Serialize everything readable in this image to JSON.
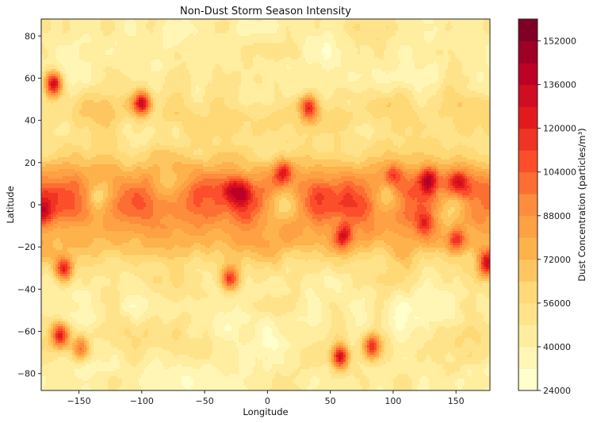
{
  "chart_data": {
    "type": "heatmap",
    "subtype": "filled-contour",
    "title": "Non-Dust Storm Season Intensity",
    "xlabel": "Longitude",
    "ylabel": "Latitude",
    "colorbar_label": "Dust Concentration (particles/m³)",
    "colormap": "YlOrRd",
    "xlim": [
      -180,
      177
    ],
    "ylim": [
      -88,
      88
    ],
    "x_ticks": [
      -150,
      -100,
      -50,
      0,
      50,
      100,
      150
    ],
    "y_ticks": [
      -80,
      -60,
      -40,
      -20,
      0,
      20,
      40,
      60,
      80
    ],
    "colorbar_range": [
      24000,
      160000
    ],
    "colorbar_ticks": [
      24000,
      40000,
      56000,
      72000,
      88000,
      104000,
      120000,
      136000,
      152000
    ],
    "levels": [
      24000,
      32000,
      40000,
      48000,
      56000,
      64000,
      72000,
      80000,
      88000,
      96000,
      104000,
      112000,
      120000,
      128000,
      136000,
      144000,
      152000,
      160000
    ],
    "base": 44000,
    "bands": [
      {
        "lat_center": 2,
        "lat_width": 17,
        "lon_start": -180,
        "lon_end": 177,
        "amplitude": 62000
      },
      {
        "lat_center": -20,
        "lat_width": 11,
        "lon_start": -180,
        "lon_end": 177,
        "amplitude": 18000
      },
      {
        "lat_center": 42,
        "lat_width": 12,
        "lon_start": -180,
        "lon_end": 177,
        "amplitude": 14000
      },
      {
        "lat_center": -66,
        "lat_width": 8,
        "lon_start": -180,
        "lon_end": 177,
        "amplitude": 6000
      }
    ],
    "hotspots": [
      {
        "lon": -170,
        "lat": 57,
        "value": 150000
      },
      {
        "lon": -100,
        "lat": 48,
        "value": 140000
      },
      {
        "lon": 33,
        "lat": 46,
        "value": 135000
      },
      {
        "lon": -178,
        "lat": -3,
        "value": 135000
      },
      {
        "lon": -20,
        "lat": 5,
        "value": 148000
      },
      {
        "lon": -28,
        "lat": 6,
        "value": 140000
      },
      {
        "lon": 13,
        "lat": 14,
        "value": 142000
      },
      {
        "lon": 100,
        "lat": 12,
        "value": 138000
      },
      {
        "lon": 128,
        "lat": 11,
        "value": 142000
      },
      {
        "lon": 152,
        "lat": 9,
        "value": 148000
      },
      {
        "lon": 60,
        "lat": -15,
        "value": 140000
      },
      {
        "lon": 150,
        "lat": -16,
        "value": 136000
      },
      {
        "lon": 175,
        "lat": -28,
        "value": 140000
      },
      {
        "lon": -162,
        "lat": -30,
        "value": 130000
      },
      {
        "lon": -30,
        "lat": -35,
        "value": 126000
      },
      {
        "lon": 125,
        "lat": -8,
        "value": 130000
      },
      {
        "lon": 58,
        "lat": -72,
        "value": 140000
      },
      {
        "lon": 83,
        "lat": -67,
        "value": 125000
      },
      {
        "lon": -165,
        "lat": -62,
        "value": 126000
      },
      {
        "lon": -148,
        "lat": -68,
        "value": 112000
      }
    ],
    "coldspots": [
      {
        "lon": -135,
        "lat": 3,
        "value": 52000
      },
      {
        "lon": 95,
        "lat": 4,
        "value": 60000
      },
      {
        "lon": 146,
        "lat": -2,
        "value": 62000
      },
      {
        "lon": -80,
        "lat": 10,
        "value": 68000
      },
      {
        "lon": 15,
        "lat": 0,
        "value": 56000
      },
      {
        "lon": 105,
        "lat": -55,
        "value": 28000
      },
      {
        "lon": -30,
        "lat": -56,
        "value": 30000
      },
      {
        "lon": 0,
        "lat": -62,
        "value": 30000
      },
      {
        "lon": -55,
        "lat": -83,
        "value": 26000
      },
      {
        "lon": -75,
        "lat": 78,
        "value": 36000
      },
      {
        "lon": 40,
        "lat": 72,
        "value": 34000
      },
      {
        "lon": 130,
        "lat": 70,
        "value": 34000
      }
    ]
  }
}
